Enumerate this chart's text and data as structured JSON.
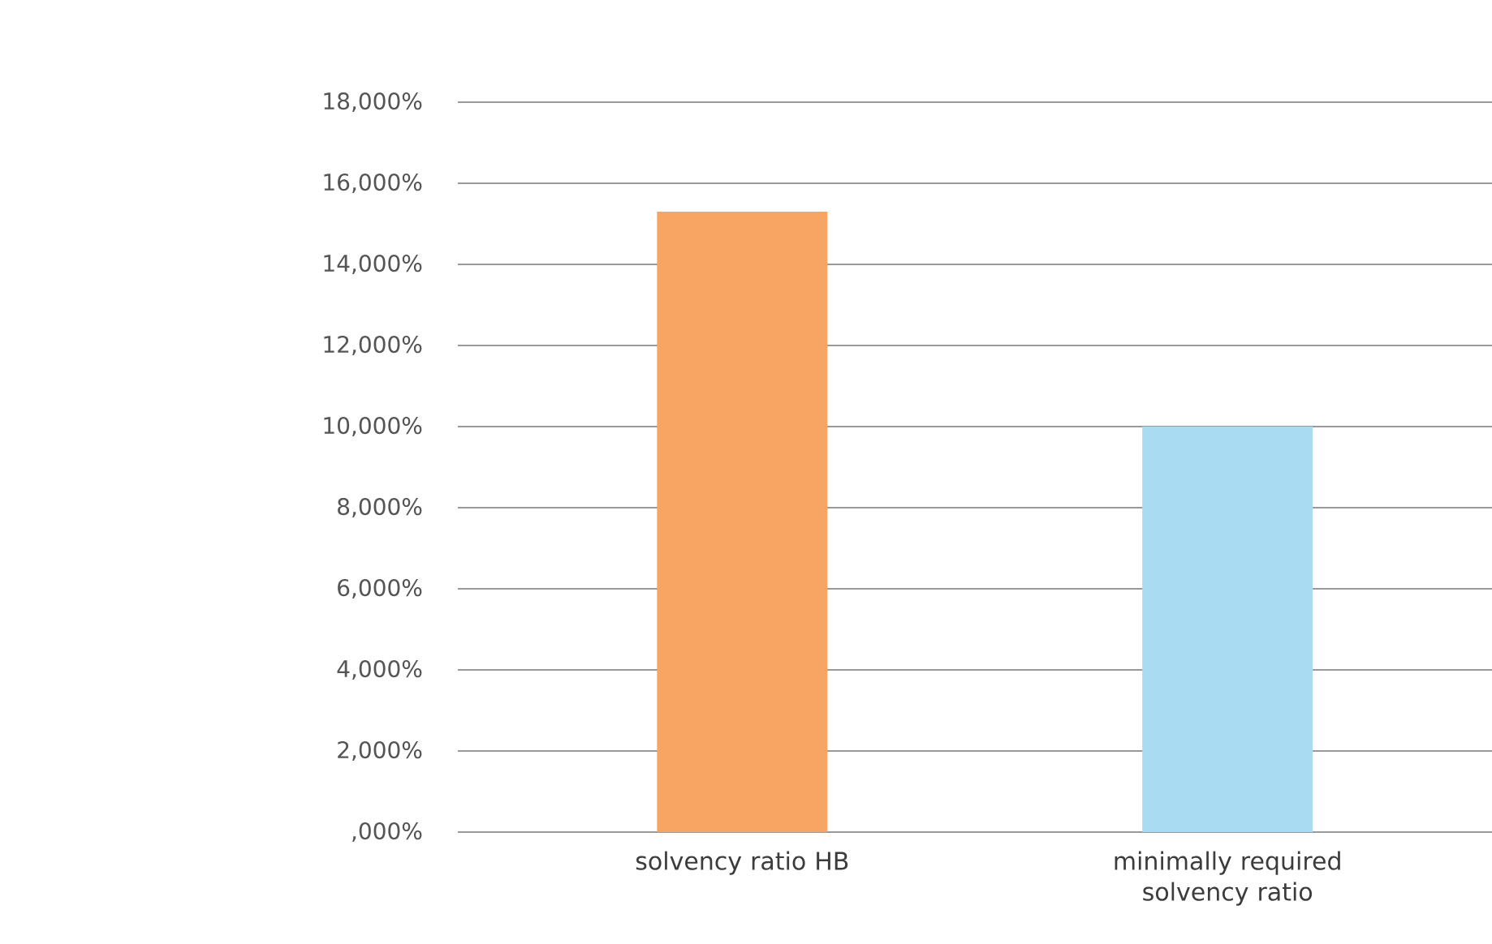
{
  "chart_data": {
    "type": "bar",
    "categories": [
      "solvency ratio HB",
      "minimally required solvency ratio"
    ],
    "values": [
      15300,
      10000
    ],
    "colors": [
      "#f8a462",
      "#a9dcf3"
    ],
    "ylim": [
      0,
      18000
    ],
    "yticks": [
      {
        "value": 0,
        "label": ",000%"
      },
      {
        "value": 2000,
        "label": "2,000%"
      },
      {
        "value": 4000,
        "label": "4,000%"
      },
      {
        "value": 6000,
        "label": "6,000%"
      },
      {
        "value": 8000,
        "label": "8,000%"
      },
      {
        "value": 10000,
        "label": "10,000%"
      },
      {
        "value": 12000,
        "label": "12,000%"
      },
      {
        "value": 14000,
        "label": "14,000%"
      },
      {
        "value": 16000,
        "label": "16,000%"
      },
      {
        "value": 18000,
        "label": "18,000%"
      }
    ],
    "grid": "y"
  }
}
